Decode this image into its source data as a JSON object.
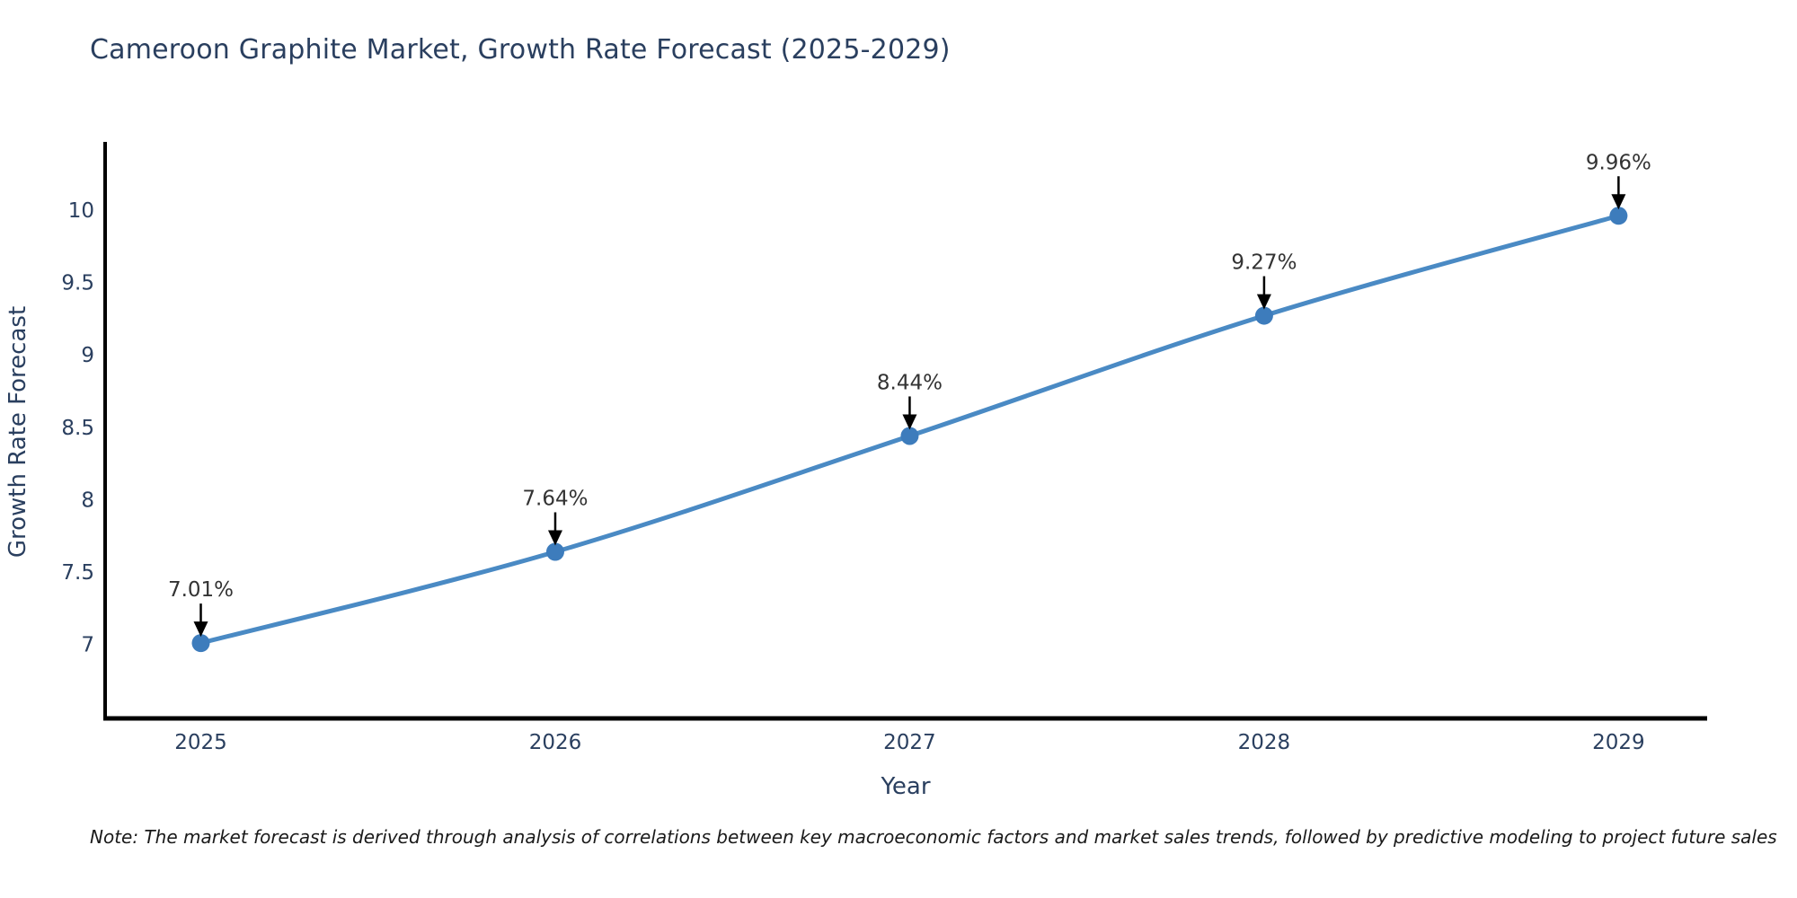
{
  "note": {
    "text": "Note: The market forecast is derived through analysis of correlations between key macroeconomic factors and market sales trends, followed by predictive modeling to project future sales"
  },
  "chart_data": {
    "type": "line",
    "title": "Cameroon Graphite Market, Growth Rate Forecast (2025-2029)",
    "xlabel": "Year",
    "ylabel": "Growth Rate Forecast",
    "x": [
      2025,
      2026,
      2027,
      2028,
      2029
    ],
    "values": [
      7.01,
      7.64,
      8.44,
      9.27,
      9.96
    ],
    "point_labels": [
      "7.01%",
      "7.64%",
      "8.44%",
      "9.27%",
      "9.96%"
    ],
    "yticks": [
      7,
      7.5,
      8,
      8.5,
      9,
      9.5,
      10
    ],
    "ytick_labels": [
      "7",
      "7.5",
      "8",
      "8.5",
      "9",
      "9.5",
      "10"
    ],
    "xtick_labels": [
      "2025",
      "2026",
      "2027",
      "2028",
      "2029"
    ],
    "ylim": [
      6.49,
      10.47
    ],
    "xlim": [
      2024.73,
      2029.25
    ],
    "grid": false,
    "legend": "none",
    "line_shape": "spline",
    "colors": {
      "line": "#4a8ac4",
      "marker": "#3d7cbc",
      "axis": "#000000",
      "tick_text": "#2a3f5f",
      "title_text": "#2a3f5f",
      "annotation_text": "#333333",
      "annotation_arrow": "#000000"
    }
  }
}
